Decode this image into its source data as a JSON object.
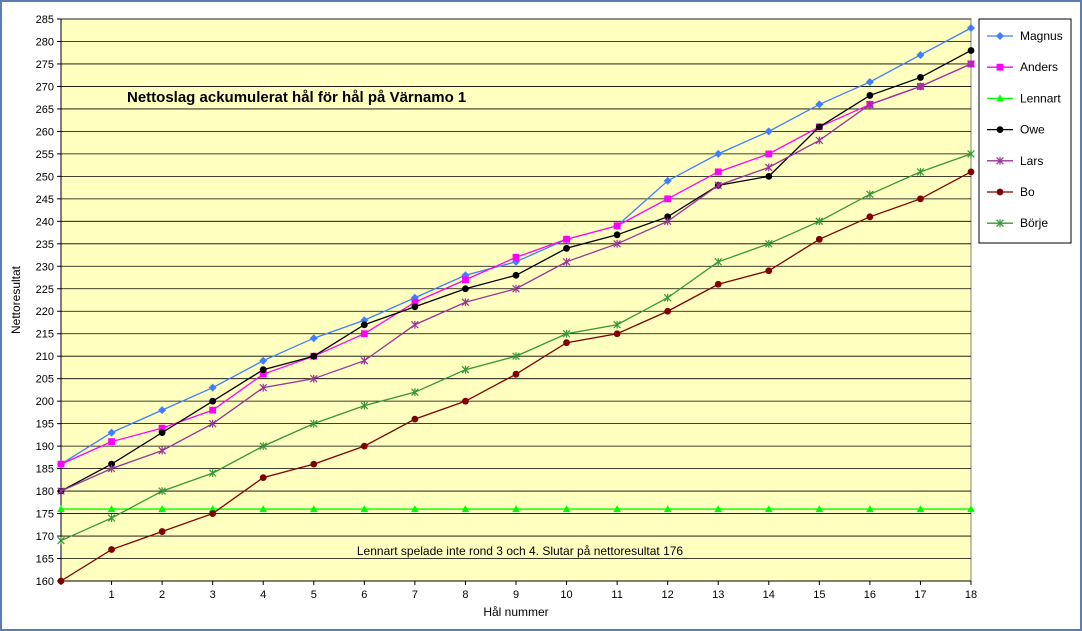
{
  "chart_data": {
    "type": "line",
    "title": "Nettoslag ackumulerat hål för hål på Värnamo 1",
    "xlabel": "Hål nummer",
    "ylabel": "Nettoresultat",
    "annotation": "Lennart spelade inte rond 3 och 4. Slutar på nettoresultat 176",
    "x": [
      0,
      1,
      2,
      3,
      4,
      5,
      6,
      7,
      8,
      9,
      10,
      11,
      12,
      13,
      14,
      15,
      16,
      17,
      18
    ],
    "x_tick_labels": [
      "1",
      "2",
      "3",
      "4",
      "5",
      "6",
      "7",
      "8",
      "9",
      "10",
      "11",
      "12",
      "13",
      "14",
      "15",
      "16",
      "17",
      "18"
    ],
    "ylim": [
      160,
      285
    ],
    "y_ticks": [
      160,
      165,
      170,
      175,
      180,
      185,
      190,
      195,
      200,
      205,
      210,
      215,
      220,
      225,
      230,
      235,
      240,
      245,
      250,
      255,
      260,
      265,
      270,
      275,
      280,
      285
    ],
    "grid": "horizontal",
    "legend_position": "right",
    "series": [
      {
        "name": "Magnus",
        "color": "#3f7fff",
        "marker": "diamond",
        "values": [
          186,
          193,
          198,
          203,
          209,
          214,
          218,
          223,
          228,
          231,
          236,
          239,
          249,
          255,
          260,
          266,
          271,
          277,
          283
        ]
      },
      {
        "name": "Anders",
        "color": "#ff00ff",
        "marker": "square",
        "values": [
          186,
          191,
          194,
          198,
          206,
          210,
          215,
          222,
          227,
          232,
          236,
          239,
          245,
          251,
          255,
          261,
          266,
          270,
          275
        ]
      },
      {
        "name": "Lennart",
        "color": "#00ff00",
        "marker": "triangle",
        "values": [
          176,
          176,
          176,
          176,
          176,
          176,
          176,
          176,
          176,
          176,
          176,
          176,
          176,
          176,
          176,
          176,
          176,
          176,
          176
        ]
      },
      {
        "name": "Owe",
        "color": "#000000",
        "marker": "circle",
        "values": [
          180,
          186,
          193,
          200,
          207,
          210,
          217,
          221,
          225,
          228,
          234,
          237,
          241,
          248,
          250,
          261,
          268,
          272,
          278
        ]
      },
      {
        "name": "Lars",
        "color": "#993399",
        "marker": "star",
        "values": [
          180,
          185,
          189,
          195,
          203,
          205,
          209,
          217,
          222,
          225,
          231,
          235,
          240,
          248,
          252,
          258,
          266,
          270,
          275
        ]
      },
      {
        "name": "Bo",
        "color": "#800000",
        "marker": "circle",
        "values": [
          160,
          167,
          171,
          175,
          183,
          186,
          190,
          196,
          200,
          206,
          213,
          215,
          220,
          226,
          229,
          236,
          241,
          245,
          251
        ]
      },
      {
        "name": "Börje",
        "color": "#339933",
        "marker": "star",
        "values": [
          169,
          174,
          180,
          184,
          190,
          195,
          199,
          202,
          207,
          210,
          215,
          217,
          223,
          231,
          235,
          240,
          246,
          251,
          255
        ]
      }
    ],
    "colors": {
      "plot_background": "#ffffc0",
      "gridline": "#000000",
      "frame_border": "#5a7fb0"
    }
  }
}
